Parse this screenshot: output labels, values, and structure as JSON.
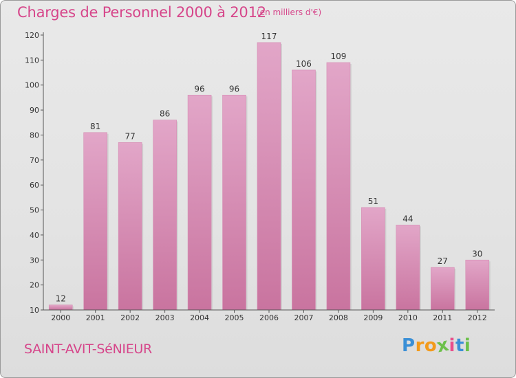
{
  "chart_data": {
    "type": "bar",
    "title": "Charges de Personnel 2000 à 2012",
    "subtitle": "(en milliers d'€)",
    "categories": [
      "2000",
      "2001",
      "2002",
      "2003",
      "2004",
      "2005",
      "2006",
      "2007",
      "2008",
      "2009",
      "2010",
      "2011",
      "2012"
    ],
    "values": [
      12,
      81,
      77,
      86,
      96,
      96,
      117,
      106,
      109,
      51,
      44,
      27,
      30
    ],
    "ylim": [
      10,
      120
    ],
    "yticks": [
      10,
      20,
      30,
      40,
      50,
      60,
      70,
      80,
      90,
      100,
      110,
      120
    ],
    "grid": false,
    "bar_color": "#d98fb8",
    "title_color": "#d6458a"
  },
  "footer": {
    "commune": "SAINT-AVIT-SéNIEUR",
    "logo_letters": [
      "P",
      "r",
      "o",
      "x",
      "i",
      "t",
      "i"
    ],
    "logo_colors": [
      "#3a8fd6",
      "#f39a1a",
      "#f39a1a",
      "#6cc04a",
      "#e94e8a",
      "#3a8fd6",
      "#6cc04a"
    ]
  }
}
